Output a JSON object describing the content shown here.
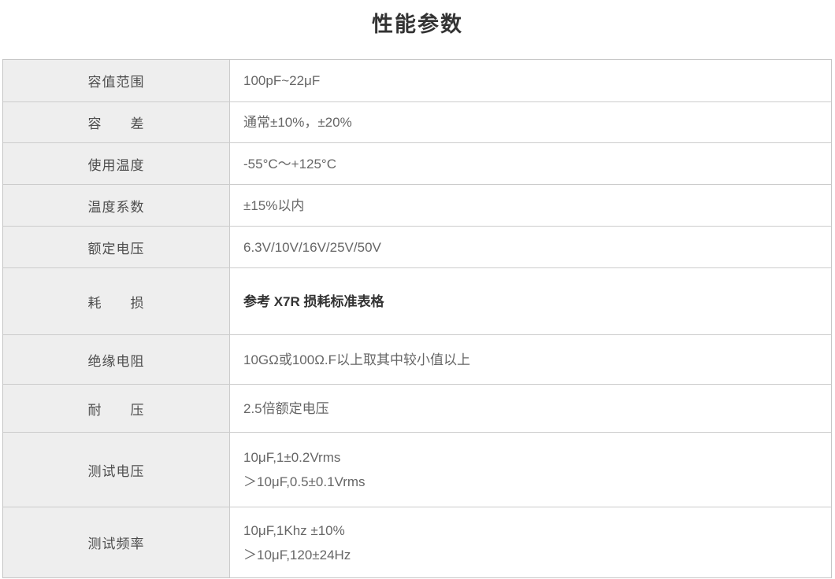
{
  "page": {
    "title": "性能参数"
  },
  "colors": {
    "label_column_bg": "#eeeeee",
    "border": "#cccccc",
    "title_text": "#333333",
    "label_text": "#4d4d4d",
    "value_text": "#666666"
  },
  "table": {
    "rows": [
      {
        "label": "容值范围",
        "lines": [
          "100pF~22μF"
        ]
      },
      {
        "label": "容　　差",
        "lines": [
          "通常±10%，±20%"
        ]
      },
      {
        "label": "使用温度",
        "lines": [
          "-55°C～+125°C"
        ]
      },
      {
        "label": "温度系数",
        "lines": [
          "±15%以内"
        ]
      },
      {
        "label": "额定电压",
        "lines": [
          "6.3V/10V/16V/25V/50V"
        ]
      },
      {
        "label": "耗　　损",
        "lines": [
          "参考 X7R 损耗标准表格"
        ],
        "emphasis": true
      },
      {
        "label": "绝缘电阻",
        "lines": [
          "10GΩ或100Ω.F以上取其中较小值以上"
        ]
      },
      {
        "label": "耐　　压",
        "lines": [
          "2.5倍额定电压"
        ]
      },
      {
        "label": "测试电压",
        "lines": [
          "10μF,1±0.2Vrms",
          "＞10μF,0.5±0.1Vrms"
        ]
      },
      {
        "label": "测试频率",
        "lines": [
          "10μF,1Khz ±10%",
          "＞10μF,120±24Hz"
        ]
      }
    ]
  }
}
